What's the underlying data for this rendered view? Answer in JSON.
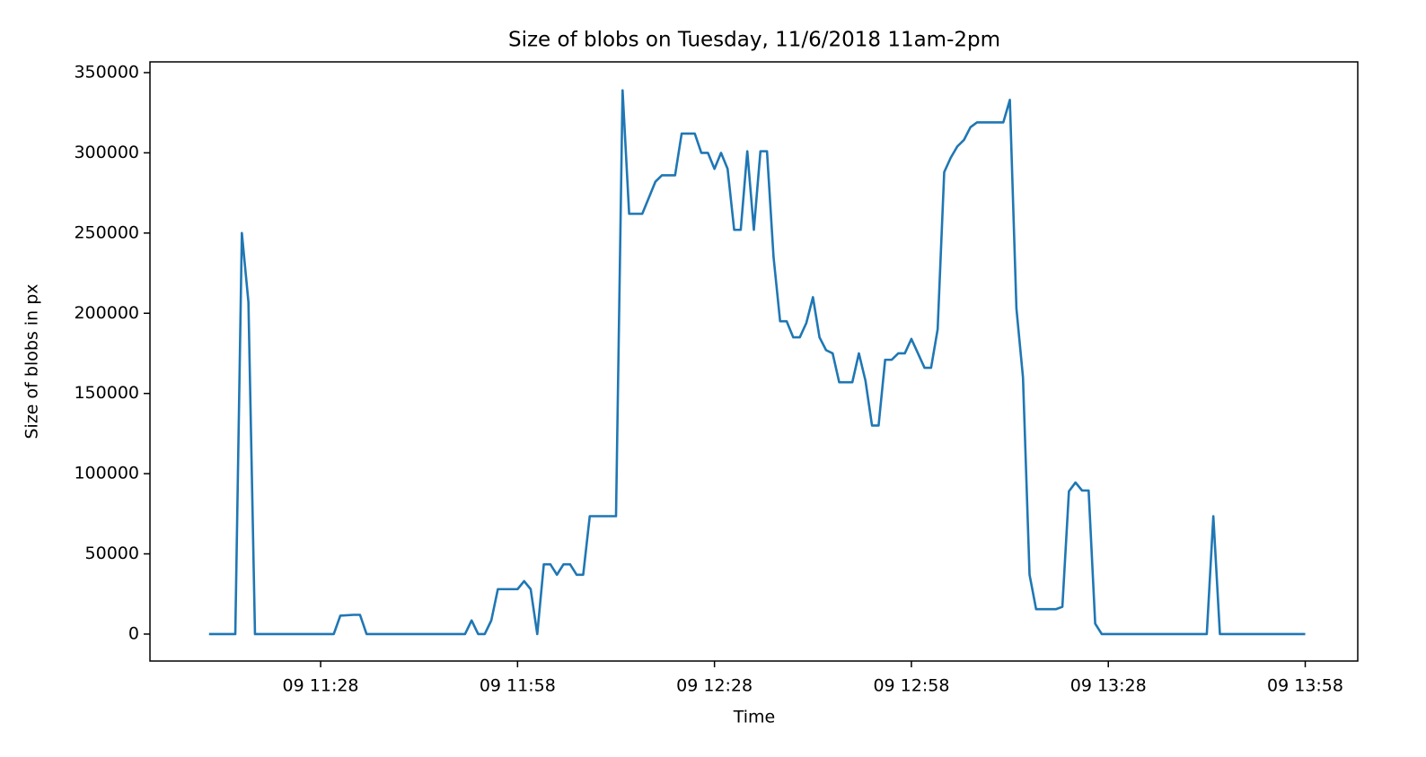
{
  "chart_data": {
    "type": "line",
    "title": "Size of blobs on Tuesday, 11/6/2018 11am-2pm",
    "x_label": "Time",
    "y_label": "Size of blobs in px",
    "x": [
      "09 11:11",
      "09 11:15",
      "09 11:16",
      "09 11:17",
      "09 11:18",
      "09 11:30",
      "09 11:31",
      "09 11:33",
      "09 11:34",
      "09 11:35",
      "09 11:50",
      "09 11:51",
      "09 11:52",
      "09 11:53",
      "09 11:54",
      "09 11:55",
      "09 11:58",
      "09 11:59",
      "09 12:00",
      "09 12:01",
      "09 12:02",
      "09 12:03",
      "09 12:04",
      "09 12:05",
      "09 12:06",
      "09 12:07",
      "09 12:08",
      "09 12:09",
      "09 12:13",
      "09 12:14",
      "09 12:15",
      "09 12:17",
      "09 12:19",
      "09 12:20",
      "09 12:22",
      "09 12:23",
      "09 12:25",
      "09 12:26",
      "09 12:27",
      "09 12:28",
      "09 12:29",
      "09 12:30",
      "09 12:31",
      "09 12:32",
      "09 12:33",
      "09 12:34",
      "09 12:35",
      "09 12:36",
      "09 12:37",
      "09 12:38",
      "09 12:39",
      "09 12:40",
      "09 12:41",
      "09 12:42",
      "09 12:43",
      "09 12:44",
      "09 12:45",
      "09 12:46",
      "09 12:47",
      "09 12:49",
      "09 12:50",
      "09 12:51",
      "09 12:52",
      "09 12:53",
      "09 12:54",
      "09 12:55",
      "09 12:56",
      "09 12:57",
      "09 12:58",
      "09 12:59",
      "09 13:00",
      "09 13:01",
      "09 13:02",
      "09 13:03",
      "09 13:04",
      "09 13:05",
      "09 13:06",
      "09 13:07",
      "09 13:08",
      "09 13:12",
      "09 13:13",
      "09 13:14",
      "09 13:15",
      "09 13:16",
      "09 13:17",
      "09 13:20",
      "09 13:21",
      "09 13:22",
      "09 13:23",
      "09 13:24",
      "09 13:25",
      "09 13:26",
      "09 13:27",
      "09 13:43",
      "09 13:44",
      "09 13:45",
      "09 13:58"
    ],
    "series": [
      {
        "name": "Size of blobs",
        "color": "#1f77b4",
        "values": [
          0,
          0,
          250000,
          207000,
          0,
          0,
          11500,
          12000,
          12000,
          0,
          0,
          8500,
          0,
          0,
          8500,
          28000,
          28000,
          33000,
          28000,
          0,
          43500,
          43500,
          37000,
          43500,
          43500,
          37000,
          37000,
          73500,
          73500,
          339000,
          262000,
          262000,
          282000,
          286000,
          286000,
          312000,
          312000,
          300000,
          300000,
          290000,
          300000,
          290000,
          252000,
          252000,
          301000,
          252000,
          301000,
          301000,
          235000,
          195000,
          195000,
          185000,
          185000,
          194000,
          210000,
          185000,
          177000,
          175000,
          157000,
          157000,
          175000,
          158000,
          130000,
          130000,
          171000,
          171000,
          175000,
          175000,
          184000,
          175000,
          166000,
          166000,
          190000,
          288000,
          297000,
          304000,
          308000,
          316000,
          319000,
          319000,
          333000,
          203000,
          160000,
          37000,
          15500,
          15500,
          17000,
          89000,
          94500,
          89500,
          89500,
          6500,
          0,
          0,
          73500,
          0,
          0
        ]
      }
    ],
    "xlim": [
      "09 11:02",
      "09 14:06"
    ],
    "xticks": [
      "09 11:28",
      "09 11:58",
      "09 12:28",
      "09 12:58",
      "09 13:28",
      "09 13:58"
    ],
    "ylim": [
      -16800,
      356700
    ],
    "yticks": [
      0,
      50000,
      100000,
      150000,
      200000,
      250000,
      300000,
      350000
    ],
    "grid": false
  }
}
